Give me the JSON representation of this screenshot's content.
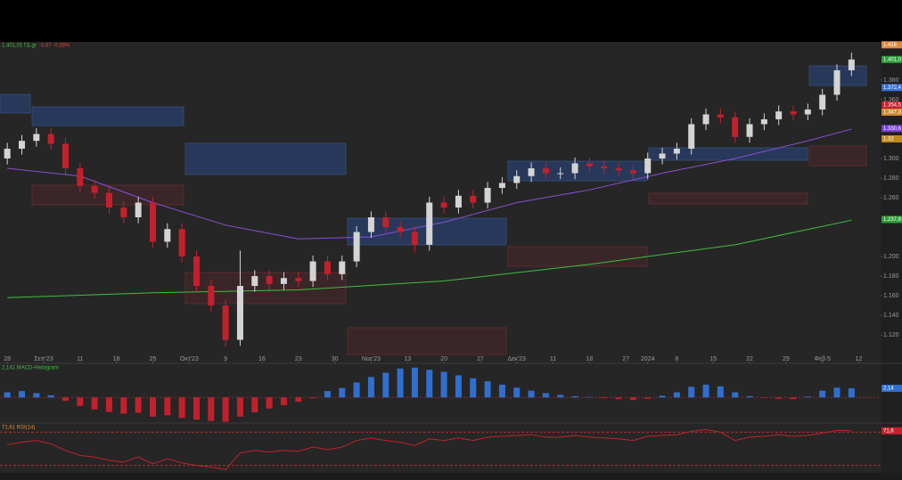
{
  "chart_data": {
    "type": "candlestick",
    "header": {
      "price": "1.401,01 ΓΔ.gr",
      "change": "-3.87 -0.28%"
    },
    "x": [
      0,
      2,
      4,
      6,
      8,
      10,
      12,
      14,
      16,
      18,
      20,
      22,
      24,
      26,
      28,
      30,
      32,
      34,
      36,
      38,
      40,
      42,
      44,
      46,
      48,
      50,
      52,
      54,
      56,
      58,
      60,
      62,
      64,
      66,
      68,
      70,
      72,
      74,
      76,
      78,
      80,
      82,
      84,
      86,
      88,
      90,
      92,
      94,
      96,
      98,
      100,
      102,
      104,
      106,
      108,
      110,
      112,
      114,
      116
    ],
    "open": [
      1300,
      1310,
      1318,
      1325,
      1315,
      1290,
      1272,
      1265,
      1250,
      1240,
      1255,
      1215,
      1228,
      1200,
      1170,
      1150,
      1115,
      1170,
      1180,
      1172,
      1178,
      1175,
      1195,
      1182,
      1195,
      1225,
      1240,
      1230,
      1225,
      1212,
      1255,
      1250,
      1262,
      1255,
      1270,
      1275,
      1282,
      1290,
      1285,
      1285,
      1295,
      1292,
      1290,
      1288,
      1285,
      1300,
      1305,
      1310,
      1335,
      1345,
      1342,
      1322,
      1335,
      1340,
      1348,
      1345,
      1350,
      1365,
      1390
    ],
    "high": [
      1316,
      1324,
      1331,
      1331,
      1321,
      1296,
      1278,
      1271,
      1256,
      1261,
      1261,
      1234,
      1234,
      1206,
      1176,
      1156,
      1206,
      1186,
      1186,
      1184,
      1184,
      1201,
      1201,
      1201,
      1231,
      1246,
      1246,
      1236,
      1231,
      1261,
      1261,
      1268,
      1268,
      1276,
      1281,
      1288,
      1296,
      1296,
      1291,
      1301,
      1301,
      1298,
      1296,
      1294,
      1306,
      1311,
      1316,
      1341,
      1351,
      1351,
      1348,
      1341,
      1346,
      1354,
      1354,
      1356,
      1371,
      1396,
      1408
    ],
    "low": [
      1294,
      1304,
      1312,
      1309,
      1284,
      1266,
      1259,
      1244,
      1234,
      1234,
      1209,
      1209,
      1194,
      1164,
      1144,
      1108,
      1109,
      1164,
      1166,
      1166,
      1169,
      1169,
      1176,
      1176,
      1189,
      1219,
      1224,
      1219,
      1204,
      1206,
      1244,
      1244,
      1249,
      1249,
      1264,
      1269,
      1276,
      1279,
      1279,
      1279,
      1286,
      1284,
      1282,
      1279,
      1279,
      1294,
      1299,
      1304,
      1329,
      1336,
      1316,
      1316,
      1329,
      1334,
      1339,
      1339,
      1344,
      1359,
      1384
    ],
    "close": [
      1310,
      1318,
      1325,
      1315,
      1290,
      1272,
      1265,
      1250,
      1240,
      1255,
      1215,
      1228,
      1200,
      1170,
      1150,
      1115,
      1170,
      1180,
      1172,
      1178,
      1175,
      1195,
      1182,
      1195,
      1225,
      1240,
      1230,
      1225,
      1212,
      1255,
      1250,
      1262,
      1255,
      1270,
      1275,
      1282,
      1290,
      1285,
      1285,
      1295,
      1292,
      1290,
      1288,
      1285,
      1300,
      1305,
      1310,
      1335,
      1345,
      1342,
      1322,
      1335,
      1340,
      1348,
      1345,
      1350,
      1365,
      1390,
      1401
    ],
    "up_color": "#d4d4d4",
    "down_color": "#c4202c",
    "series": [
      {
        "name": "MA",
        "color": "#3fbf3f",
        "x": [
          0,
          20,
          40,
          60,
          80,
          100,
          116
        ],
        "values": [
          1158,
          1163,
          1166,
          1175,
          1192,
          1212,
          1237
        ]
      },
      {
        "name": "MA2",
        "color": "#8a4fd6",
        "x": [
          0,
          10,
          20,
          30,
          40,
          50,
          60,
          70,
          80,
          90,
          100,
          110,
          116
        ],
        "values": [
          1290,
          1282,
          1255,
          1232,
          1218,
          1220,
          1235,
          1255,
          1268,
          1285,
          1300,
          1318,
          1330
        ]
      }
    ],
    "xlim": [
      -1,
      120
    ],
    "ylim": [
      1091,
      1419
    ],
    "yticks": [
      {
        "value": 1120,
        "label": "1.120"
      },
      {
        "value": 1140,
        "label": "1.140"
      },
      {
        "value": 1160,
        "label": "1.160"
      },
      {
        "value": 1180,
        "label": "1.180"
      },
      {
        "value": 1200,
        "label": "1.200"
      },
      {
        "value": 1260,
        "label": "1.260"
      },
      {
        "value": 1280,
        "label": "1.280"
      },
      {
        "value": 1300,
        "label": "1.300"
      },
      {
        "value": 1360,
        "label": "1.360"
      },
      {
        "value": 1380,
        "label": "1.380"
      }
    ],
    "xticks": [
      {
        "value": 0,
        "label": "28"
      },
      {
        "value": 5,
        "label": "Σεπ'23"
      },
      {
        "value": 10,
        "label": "11"
      },
      {
        "value": 15,
        "label": "18"
      },
      {
        "value": 20,
        "label": "25"
      },
      {
        "value": 25,
        "label": "Οκτ'23"
      },
      {
        "value": 30,
        "label": "9"
      },
      {
        "value": 35,
        "label": "16"
      },
      {
        "value": 40,
        "label": "23"
      },
      {
        "value": 45,
        "label": "30"
      },
      {
        "value": 50,
        "label": "Νοε'23"
      },
      {
        "value": 55,
        "label": "13"
      },
      {
        "value": 60,
        "label": "20"
      },
      {
        "value": 65,
        "label": "27"
      },
      {
        "value": 70,
        "label": "Δεκ'23"
      },
      {
        "value": 75,
        "label": "11"
      },
      {
        "value": 80,
        "label": "18"
      },
      {
        "value": 85,
        "label": "27"
      },
      {
        "value": 88,
        "label": "2024"
      },
      {
        "value": 92,
        "label": "8"
      },
      {
        "value": 97,
        "label": "15"
      },
      {
        "value": 102,
        "label": "22"
      },
      {
        "value": 107,
        "label": "29"
      },
      {
        "value": 112,
        "label": "Φεβ 5"
      },
      {
        "value": 117,
        "label": "12"
      }
    ],
    "price_tags": [
      {
        "value": 1416,
        "label": "1.416",
        "color": "#e08a3c"
      },
      {
        "value": 1401.01,
        "label": "1.401,0",
        "color": "#2e9d3a"
      },
      {
        "value": 1372.4,
        "label": "1.372,4",
        "color": "#3a6fd8"
      },
      {
        "value": 1354.5,
        "label": "1.354,5",
        "color": "#c4202c"
      },
      {
        "value": 1347.3,
        "label": "1.347,3",
        "color": "#d08a30"
      },
      {
        "value": 1330.6,
        "label": "1.330,6",
        "color": "#7a3fd0"
      },
      {
        "value": 1320,
        "label": "1.32",
        "color": "#c08a20"
      },
      {
        "value": 1237.8,
        "label": "1.237,8",
        "color": "#2e9d3a"
      }
    ],
    "macd": {
      "title": "2,141 MACD-Histogram",
      "up_color": "#2f6fd0",
      "down_color": "#c4202c",
      "values": [
        1.2,
        1.5,
        1.0,
        0.5,
        -0.8,
        -2,
        -2.8,
        -3.4,
        -3.8,
        -3.6,
        -4.5,
        -4.2,
        -4.8,
        -5.2,
        -5.5,
        -5.7,
        -4.5,
        -3.5,
        -2.6,
        -1.8,
        -1.0,
        -0.2,
        1.5,
        2.2,
        3.5,
        4.8,
        5.8,
        6.8,
        7.0,
        6.5,
        6.0,
        5.2,
        4.5,
        3.8,
        3.0,
        2.3,
        1.6,
        1.0,
        0.6,
        0.3,
        0.1,
        -0.2,
        -0.4,
        -0.6,
        -0.3,
        0.4,
        1.2,
        2.5,
        3.0,
        2.6,
        1.2,
        0.3,
        -0.1,
        -0.3,
        -0.4,
        0.2,
        1.6,
        2.3,
        2.141
      ],
      "ylim": [
        -6,
        8
      ],
      "tag": {
        "value": 2.141,
        "label": "2,14"
      }
    },
    "rsi": {
      "title": "71,61 RSI(14)",
      "color": "#c4202c",
      "values": [
        55,
        58,
        60,
        56,
        48,
        42,
        40,
        36,
        34,
        40,
        32,
        38,
        33,
        30,
        28,
        25,
        45,
        48,
        46,
        48,
        47,
        52,
        49,
        52,
        60,
        63,
        60,
        58,
        54,
        62,
        60,
        63,
        60,
        64,
        65,
        66,
        67,
        64,
        64,
        66,
        64,
        63,
        62,
        60,
        65,
        66,
        67,
        71,
        73,
        70,
        60,
        64,
        65,
        67,
        65,
        66,
        69,
        72,
        71.61
      ],
      "ylim": [
        21,
        81
      ],
      "levels": [
        70,
        30
      ],
      "tag": {
        "value": 71.61,
        "label": "71,6"
      }
    }
  }
}
